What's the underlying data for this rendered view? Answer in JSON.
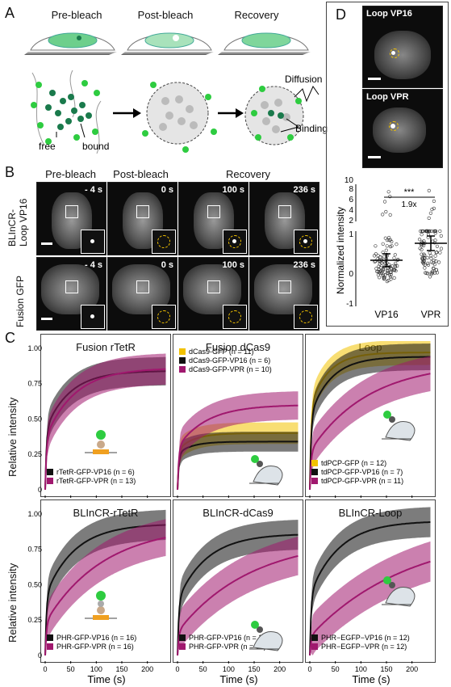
{
  "panelA": {
    "label": "A",
    "stages": [
      "Pre-bleach",
      "Post-bleach",
      "Recovery"
    ],
    "labels": {
      "free": "free",
      "bound": "bound",
      "diffusion": "Diffusion",
      "binding": "Binding"
    },
    "colors": {
      "green": "#2ecc40",
      "darkgreen": "#1a7a4c",
      "gray": "#aaaaaa"
    }
  },
  "panelB": {
    "label": "B",
    "headers": [
      "Pre-bleach",
      "Post-bleach",
      "Recovery"
    ],
    "rows": [
      {
        "label": "BLInCR-\nLoop VP16",
        "label1": "BLInCR-",
        "label2": "Loop VP16",
        "times": [
          "- 4 s",
          "0 s",
          "100 s",
          "236 s"
        ]
      },
      {
        "label": "Fusion GFP",
        "times": [
          "- 4 s",
          "0 s",
          "100 s",
          "236 s"
        ]
      }
    ]
  },
  "panelD": {
    "label": "D",
    "images": [
      "Loop VP16",
      "Loop VPR"
    ],
    "plot": {
      "ylabel": "Normalized intensity",
      "categories": [
        "VP16",
        "VPR"
      ],
      "yticks_lower": [
        "-1",
        "0",
        "1"
      ],
      "yticks_upper": [
        "2",
        "4",
        "6",
        "8",
        "10"
      ],
      "significance": "***",
      "fold": "1.9x",
      "means": [
        0.5,
        1.0
      ]
    }
  },
  "panelC": {
    "label": "C",
    "xlabel": "Time (s)",
    "ylabel": "Relative intensity",
    "xticks": [
      0,
      50,
      100,
      150,
      200
    ],
    "yticks": [
      "0",
      "0.25",
      "0.50",
      "0.75",
      "1.00"
    ],
    "colors": {
      "black": "#111111",
      "magenta": "#a0186e",
      "yellow": "#f2c200"
    },
    "subplots": [
      {
        "title": "Fusion rTetR",
        "legend": [
          "rTetR-GFP-VP16 (n = 6)",
          "rTetR-GFP-VPR (n = 13)"
        ]
      },
      {
        "title": "Fusion dCas9",
        "legend": [
          "dCas9-GFP (n = 11)",
          "dCas9-GFP-VP16 (n = 6)",
          "dCas9-GFP-VPR (n = 10)"
        ]
      },
      {
        "title": "Loop",
        "legend": [
          "tdPCP-GFP (n = 12)",
          "tdPCP-GFP-VP16 (n = 7)",
          "tdPCP-GFP-VPR (n = 11)"
        ]
      },
      {
        "title": "BLInCR-rTetR",
        "legend": [
          "PHR-GFP-VP16 (n = 16)",
          "PHR-GFP-VPR (n = 16)"
        ]
      },
      {
        "title": "BLInCR-dCas9",
        "legend": [
          "PHR-GFP-VP16 (n = 11)",
          "PHR-GFP-VPR (n = 14)"
        ]
      },
      {
        "title": "BLInCR-Loop",
        "legend": [
          "PHR−EGFP−VP16 (n = 12)",
          "PHR−EGFP−VPR (n = 12)"
        ]
      }
    ]
  },
  "chart_data": [
    {
      "type": "line",
      "title": "Fusion rTetR",
      "xlabel": "Time (s)",
      "ylabel": "Relative intensity",
      "xlim": [
        0,
        240
      ],
      "ylim": [
        0,
        1.05
      ],
      "series": [
        {
          "name": "rTetR-GFP-VP16 (n = 6)",
          "color": "#111111",
          "plateau": 0.84,
          "k": 0.06,
          "fast": 0.5
        },
        {
          "name": "rTetR-GFP-VPR (n = 13)",
          "color": "#a0186e",
          "plateau": 0.86,
          "k": 0.05,
          "fast": 0.42
        }
      ]
    },
    {
      "type": "line",
      "title": "Fusion dCas9",
      "xlabel": "Time (s)",
      "ylabel": "Relative intensity",
      "xlim": [
        0,
        240
      ],
      "ylim": [
        0,
        1.05
      ],
      "series": [
        {
          "name": "dCas9-GFP (n = 11)",
          "color": "#f2c200",
          "plateau": 0.4,
          "k": 0.09,
          "fast": 0.7
        },
        {
          "name": "dCas9-GFP-VP16 (n = 6)",
          "color": "#111111",
          "plateau": 0.34,
          "k": 0.1,
          "fast": 0.75
        },
        {
          "name": "dCas9-GFP-VPR (n = 10)",
          "color": "#a0186e",
          "plateau": 0.6,
          "k": 0.05,
          "fast": 0.5
        }
      ]
    },
    {
      "type": "line",
      "title": "Loop",
      "xlabel": "Time (s)",
      "ylabel": "Relative intensity",
      "xlim": [
        0,
        240
      ],
      "ylim": [
        0,
        1.05
      ],
      "series": [
        {
          "name": "tdPCP-GFP (n = 12)",
          "color": "#f2c200",
          "plateau": 0.97,
          "k": 0.08,
          "fast": 0.6
        },
        {
          "name": "tdPCP-GFP-VP16 (n = 7)",
          "color": "#111111",
          "plateau": 0.94,
          "k": 0.07,
          "fast": 0.55
        },
        {
          "name": "tdPCP-GFP-VPR (n = 11)",
          "color": "#a0186e",
          "plateau": 0.9,
          "k": 0.025,
          "fast": 0.3
        }
      ]
    },
    {
      "type": "line",
      "title": "BLInCR-rTetR",
      "xlabel": "Time (s)",
      "ylabel": "Relative intensity",
      "xlim": [
        0,
        240
      ],
      "ylim": [
        0,
        1.05
      ],
      "series": [
        {
          "name": "PHR-GFP-VP16 (n = 16)",
          "color": "#111111",
          "plateau": 0.93,
          "k": 0.05,
          "fast": 0.45
        },
        {
          "name": "PHR-GFP-VPR (n = 16)",
          "color": "#a0186e",
          "plateau": 0.92,
          "k": 0.025,
          "fast": 0.25
        }
      ]
    },
    {
      "type": "line",
      "title": "BLInCR-dCas9",
      "xlabel": "Time (s)",
      "ylabel": "Relative intensity",
      "xlim": [
        0,
        240
      ],
      "ylim": [
        0,
        1.05
      ],
      "series": [
        {
          "name": "PHR-GFP-VP16 (n = 11)",
          "color": "#111111",
          "plateau": 0.86,
          "k": 0.05,
          "fast": 0.45
        },
        {
          "name": "PHR-GFP-VPR (n = 14)",
          "color": "#a0186e",
          "plateau": 0.83,
          "k": 0.02,
          "fast": 0.2
        }
      ]
    },
    {
      "type": "line",
      "title": "BLInCR-Loop",
      "xlabel": "Time (s)",
      "ylabel": "Relative intensity",
      "xlim": [
        0,
        240
      ],
      "ylim": [
        0,
        1.05
      ],
      "series": [
        {
          "name": "PHR−EGFP−VP16 (n = 12)",
          "color": "#111111",
          "plateau": 0.95,
          "k": 0.05,
          "fast": 0.45
        },
        {
          "name": "PHR−EGFP−VPR (n = 12)",
          "color": "#a0186e",
          "plateau": 0.88,
          "k": 0.015,
          "fast": 0.15
        }
      ]
    }
  ]
}
